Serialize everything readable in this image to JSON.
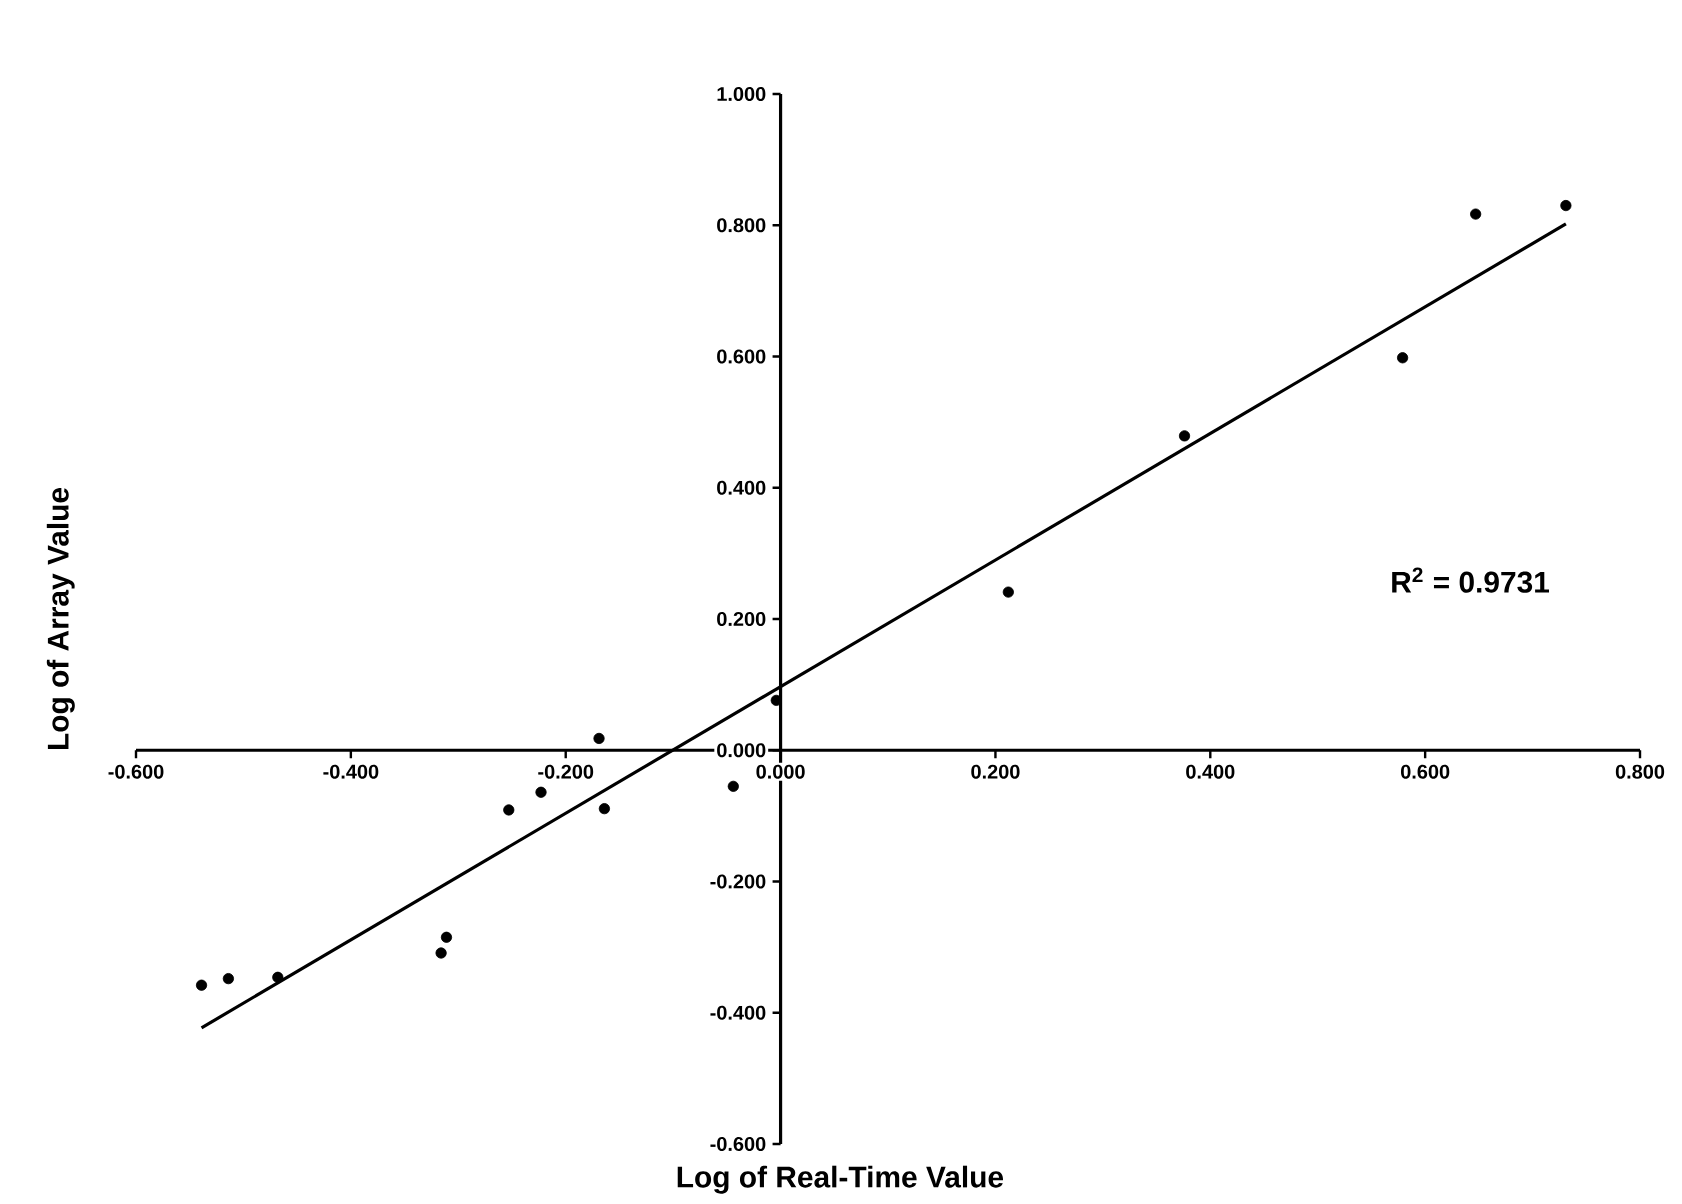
{
  "chart_data": {
    "type": "scatter",
    "xlabel": "Log of Real-Time Value",
    "ylabel": "Log of Array Value",
    "xlim": [
      -0.6,
      0.8
    ],
    "ylim": [
      -0.6,
      1.0
    ],
    "xticks": [
      {
        "value": -0.6,
        "label": "-0.600"
      },
      {
        "value": -0.4,
        "label": "-0.400"
      },
      {
        "value": -0.2,
        "label": "-0.200"
      },
      {
        "value": 0,
        "label": "0.000"
      },
      {
        "value": 0.2,
        "label": "0.200"
      },
      {
        "value": 0.4,
        "label": "0.400"
      },
      {
        "value": 0.6,
        "label": "0.600"
      },
      {
        "value": 0.8,
        "label": "0.800"
      }
    ],
    "yticks": [
      {
        "value": -0.6,
        "label": "-0.600"
      },
      {
        "value": -0.4,
        "label": "-0.400"
      },
      {
        "value": -0.2,
        "label": "-0.200"
      },
      {
        "value": 0,
        "label": "0.000"
      },
      {
        "value": 0.2,
        "label": "0.200"
      },
      {
        "value": 0.4,
        "label": "0.400"
      },
      {
        "value": 0.6,
        "label": "0.600"
      },
      {
        "value": 0.8,
        "label": "0.800"
      },
      {
        "value": 1.0,
        "label": "1.000"
      }
    ],
    "grid": false,
    "marker": "circle",
    "annotations": [
      "R$^{2}$ = 0.9731"
    ],
    "series": [
      {
        "color": "#000000",
        "x": [
          -0.539,
          -0.514,
          -0.468,
          -0.316,
          -0.311,
          -0.253,
          -0.223,
          -0.169,
          -0.164,
          -0.044,
          -0.004,
          0.212,
          0.376,
          0.579,
          0.647,
          0.731
        ],
        "values": [
          -0.358,
          -0.348,
          -0.346,
          -0.309,
          -0.285,
          -0.091,
          -0.064,
          0.018,
          -0.089,
          -0.055,
          0.076,
          0.241,
          0.479,
          0.598,
          0.817,
          0.83
        ]
      },
      {
        "type": "line",
        "color": "#000000",
        "marker": "none",
        "x": [
          -0.539,
          0.731
        ],
        "values": [
          -0.423,
          0.802
        ]
      }
    ]
  }
}
